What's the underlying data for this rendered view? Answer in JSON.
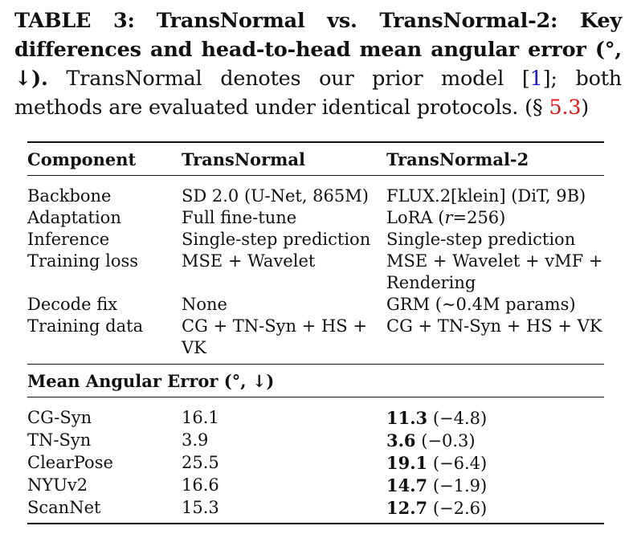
{
  "caption": {
    "label": "TABLE 3:",
    "bold_text": "TransNormal vs. TransNormal-2: Key differences and head-to-head mean angular error (°, ↓).",
    "text_part1": "TransNormal denotes our prior model [",
    "ref_1": "1",
    "text_part2": "]; both methods are evaluated under identical protocols. (§",
    "ref_section": "5.3",
    "text_part3": ")"
  },
  "table": {
    "headers": [
      "Component",
      "TransNormal",
      "TransNormal-2"
    ],
    "component_rows": [
      {
        "component": "Backbone",
        "transnormal": "SD 2.0 (U-Net, 865M)",
        "transnormal2": "FLUX.2[klein] (DiT, 9B)"
      },
      {
        "component": "Adaptation",
        "transnormal": "Full fine-tune",
        "transnormal2_prefix": "LoRA (",
        "transnormal2_var": "r",
        "transnormal2_suffix": "=256)"
      },
      {
        "component": "Inference",
        "transnormal": "Single-step prediction",
        "transnormal2": "Single-step prediction"
      },
      {
        "component": "Training loss",
        "transnormal": "MSE + Wavelet",
        "transnormal2": "MSE + Wavelet + vMF + Rendering"
      },
      {
        "component": "Decode fix",
        "transnormal": "None",
        "transnormal2": "GRM (∼0.4M params)"
      },
      {
        "component": "Training data",
        "transnormal": "CG + TN-Syn + HS + VK",
        "transnormal2": "CG + TN-Syn + HS + VK"
      }
    ],
    "error_section_title": "Mean Angular Error (°, ↓)",
    "error_rows": [
      {
        "dataset": "CG-Syn",
        "transnormal": "16.1",
        "transnormal2": "11.3",
        "delta": "(−4.8)"
      },
      {
        "dataset": "TN-Syn",
        "transnormal": "3.9",
        "transnormal2": "3.6",
        "delta": "(−0.3)"
      },
      {
        "dataset": "ClearPose",
        "transnormal": "25.5",
        "transnormal2": "19.1",
        "delta": "(−6.4)"
      },
      {
        "dataset": "NYUv2",
        "transnormal": "16.6",
        "transnormal2": "14.7",
        "delta": "(−1.9)"
      },
      {
        "dataset": "ScanNet",
        "transnormal": "15.3",
        "transnormal2": "12.7",
        "delta": "(−2.6)"
      }
    ]
  }
}
